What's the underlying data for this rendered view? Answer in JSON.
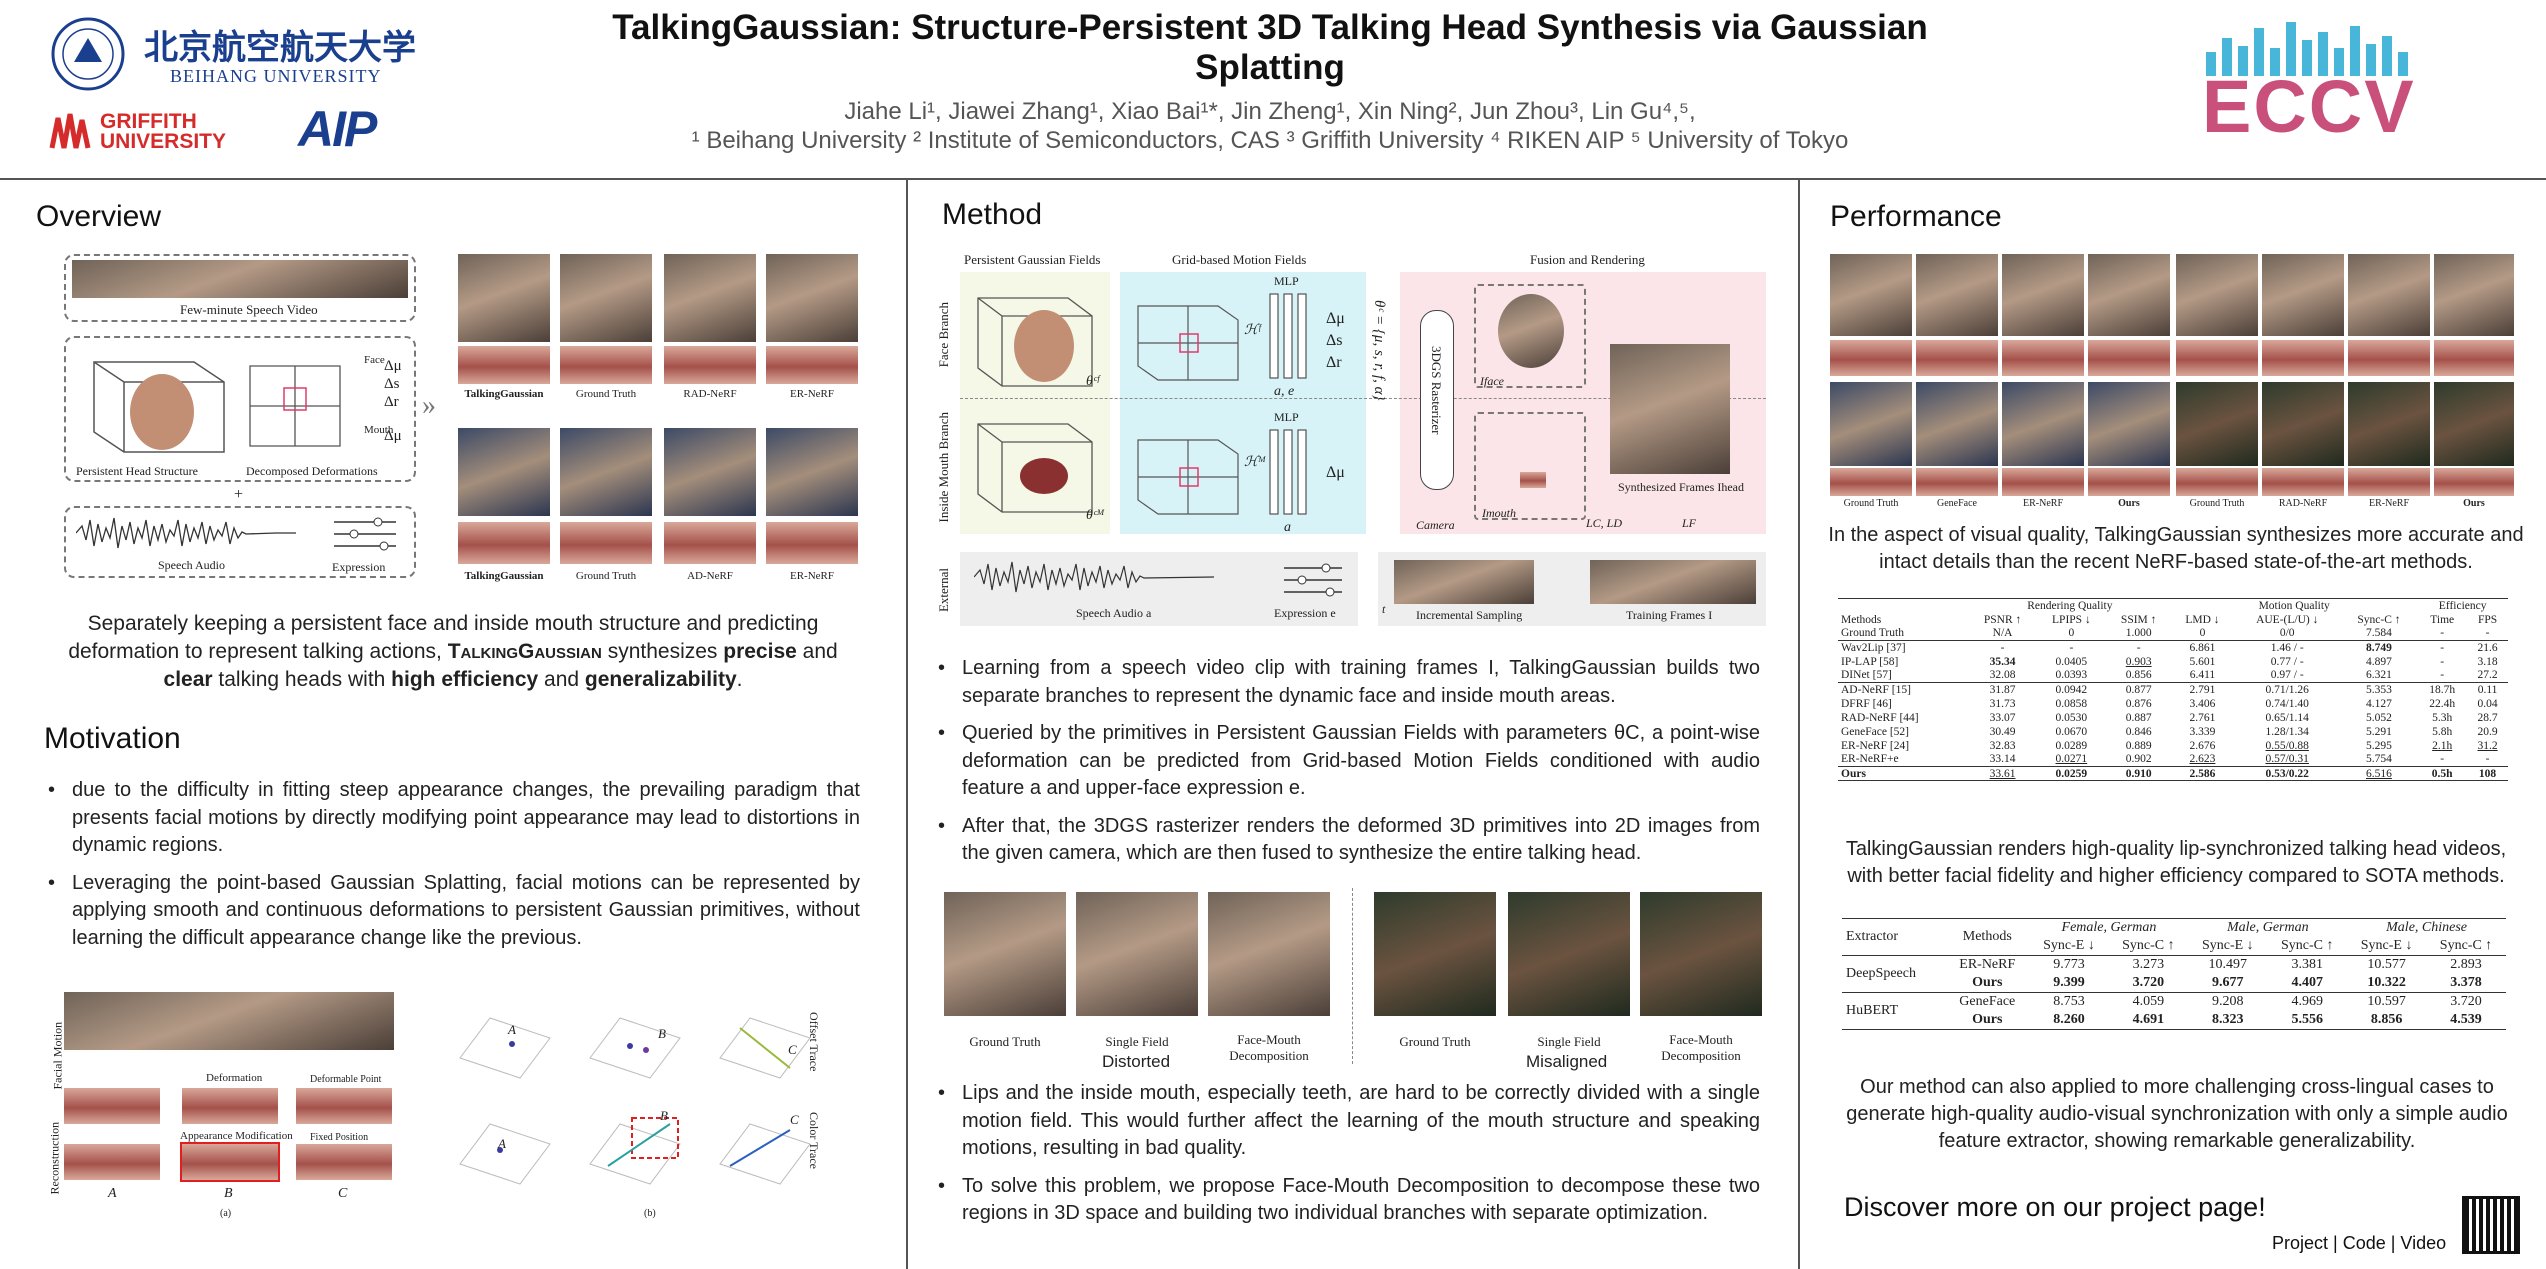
{
  "header": {
    "title": "TalkingGaussian: Structure-Persistent 3D Talking Head Synthesis via Gaussian Splatting",
    "authors": "Jiahe Li¹, Jiawei Zhang¹, Xiao Bai¹*, Jin Zheng¹, Xin Ning², Jun Zhou³, Lin Gu⁴,⁵,",
    "affiliations": "¹ Beihang University  ² Institute of Semiconductors, CAS  ³ Griffith University  ⁴ RIKEN AIP  ⁵ University of Tokyo",
    "logos": {
      "beihang_cn": "北京航空航天大学",
      "beihang_en": "BEIHANG UNIVERSITY",
      "griffith": "GRIFFITH UNIVERSITY",
      "aip": "AIP",
      "eccv": "ECCV"
    }
  },
  "overview": {
    "heading": "Overview",
    "fig": {
      "video": "Few-minute Speech Video",
      "head": "Persistent Head Structure",
      "deform": "Decomposed Deformations",
      "audio": "Speech Audio",
      "expr": "Expression",
      "face": "Face",
      "mouth": "Mouth",
      "delta_mu": "Δμ",
      "delta_s": "Δs",
      "delta_r": "Δr",
      "plus": "+",
      "cmp1": [
        "TalkingGaussian",
        "Ground Truth",
        "RAD-NeRF",
        "ER-NeRF"
      ],
      "cmp2": [
        "TalkingGaussian",
        "Ground Truth",
        "AD-NeRF",
        "ER-NeRF"
      ]
    },
    "text_a": "Separately keeping a persistent face and inside mouth structure and predicting deformation to represent talking actions, ",
    "text_name": "TalkingGaussian",
    "text_b": " synthesizes ",
    "text_precise": "precise",
    "text_c": " and ",
    "text_clear": "clear",
    "text_d": " talking heads with ",
    "text_eff": "high efficiency",
    "text_e": " and ",
    "text_gen": "generalizability",
    "text_f": "."
  },
  "motivation": {
    "heading": "Motivation",
    "bullets": [
      "due to the difficulty in fitting steep appearance changes, the prevailing paradigm that presents facial motions by directly modifying point appearance may lead to distortions in dynamic regions.",
      "Leveraging the point-based Gaussian Splatting, facial motions can be represented by applying smooth and continuous deformations to persistent Gaussian primitives, without learning the difficult appearance change like the previous."
    ],
    "fig": {
      "facial_motion": "Facial Motion",
      "reconstruction": "Reconstruction",
      "deformation": "Deformation",
      "appearance": "Appearance Modification",
      "deformable": "Deformable Point",
      "fixed": "Fixed Position",
      "A": "A",
      "B": "B",
      "C": "C",
      "a": "(a)",
      "b": "(b)",
      "offset": "Offset Trace",
      "color": "Color Trace"
    }
  },
  "method": {
    "heading": "Method",
    "fig": {
      "pgf": "Persistent Gaussian Fields",
      "gmf": "Grid-based Motion Fields",
      "fr": "Fusion and Rendering",
      "face_branch": "Face Branch",
      "mouth_branch": "Inside Mouth Branch",
      "external": "External",
      "mlp": "MLP",
      "ae": "a, e",
      "a": "a",
      "dmu": "Δμ",
      "ds": "Δs",
      "dr": "Δr",
      "theta_f": "θᶜᶠ",
      "theta_m": "θᶜᴹ",
      "hf": "ℋᶠ",
      "hm": "ℋᴹ",
      "params": "θᶜ = {μ, s, r, f, α}",
      "rasterizer": "3DGS Rasterizer",
      "camera": "Camera",
      "iface": "Iface",
      "imouth": "Imouth",
      "synth": "Synthesized Frames Ihead",
      "loss_cd": "LC, LD",
      "loss_f": "LF",
      "speech": "Speech Audio a",
      "expression": "Expression e",
      "incremental": "Incremental Sampling",
      "training": "Training Frames I",
      "t": "t"
    },
    "bullets": [
      "Learning from a speech video clip with training frames I, TalkingGaussian builds two separate branches to represent the dynamic face and inside mouth areas.",
      "Queried by the primitives in Persistent Gaussian Fields with parameters θC, a point-wise deformation can be predicted from Grid-based Motion Fields conditioned with audio feature a and upper-face expression e.",
      "After that, the 3DGS rasterizer renders the deformed 3D primitives into 2D images from the given camera, which are then fused to synthesize the entire talking head."
    ],
    "fm_fig": {
      "caps": [
        "Ground Truth",
        "Single Field",
        "Face-Mouth Decomposition",
        "Ground Truth",
        "Single Field",
        "Face-Mouth Decomposition"
      ],
      "distorted": "Distorted",
      "misaligned": "Misaligned"
    },
    "bullets2": [
      "Lips and the inside mouth, especially teeth, are hard to be correctly divided with a single motion field. This would further affect the learning of the mouth structure and speaking motions, resulting in bad quality.",
      "To solve this problem, we propose Face-Mouth Decomposition to decompose these two regions in 3D space and building two individual branches with separate optimization."
    ]
  },
  "performance": {
    "heading": "Performance",
    "grid_caps": [
      "Ground Truth",
      "GeneFace",
      "ER-NeRF",
      "Ours",
      "Ground Truth",
      "RAD-NeRF",
      "ER-NeRF",
      "Ours"
    ],
    "text1": "In the aspect of visual quality, TalkingGaussian synthesizes more accurate and intact details than the recent NeRF-based state-of-the-art methods.",
    "table1": {
      "groups": [
        "Rendering Quality",
        "Motion Quality",
        "Efficiency"
      ],
      "cols": [
        "Methods",
        "PSNR ↑",
        "LPIPS ↓",
        "SSIM ↑",
        "LMD ↓",
        "AUE-(L/U) ↓",
        "Sync-C ↑",
        "Time",
        "FPS"
      ],
      "gt": [
        "Ground Truth",
        "N/A",
        "0",
        "1.000",
        "0",
        "0/0",
        "7.584",
        "-",
        "-"
      ],
      "rows_a": [
        [
          "Wav2Lip [37]",
          "-",
          "-",
          "-",
          "6.861",
          "1.46 / -",
          "8.749",
          "-",
          "21.6"
        ],
        [
          "IP-LAP [58]",
          "35.34",
          "0.0405",
          "0.903",
          "5.601",
          "0.77 / -",
          "4.897",
          "-",
          "3.18"
        ],
        [
          "DINet [57]",
          "32.08",
          "0.0393",
          "0.856",
          "6.411",
          "0.97 / -",
          "6.321",
          "-",
          "27.2"
        ]
      ],
      "rows_b": [
        [
          "AD-NeRF [15]",
          "31.87",
          "0.0942",
          "0.877",
          "2.791",
          "0.71/1.26",
          "5.353",
          "18.7h",
          "0.11"
        ],
        [
          "DFRF [46]",
          "31.73",
          "0.0858",
          "0.876",
          "3.406",
          "0.74/1.40",
          "4.127",
          "22.4h",
          "0.04"
        ],
        [
          "RAD-NeRF [44]",
          "33.07",
          "0.0530",
          "0.887",
          "2.761",
          "0.65/1.14",
          "5.052",
          "5.3h",
          "28.7"
        ],
        [
          "GeneFace [52]",
          "30.49",
          "0.0670",
          "0.846",
          "3.339",
          "1.28/1.34",
          "5.291",
          "5.8h",
          "20.9"
        ],
        [
          "ER-NeRF [24]",
          "32.83",
          "0.0289",
          "0.889",
          "2.676",
          "0.55/0.88",
          "5.295",
          "2.1h",
          "31.2"
        ],
        [
          "ER-NeRF+e",
          "33.14",
          "0.0271",
          "0.902",
          "2.623",
          "0.57/0.31",
          "5.754",
          "-",
          "-"
        ]
      ],
      "ours": [
        "Ours",
        "33.61",
        "0.0259",
        "0.910",
        "2.586",
        "0.53/0.22",
        "6.516",
        "0.5h",
        "108"
      ]
    },
    "text2": "TalkingGaussian renders high-quality lip-synchronized talking head videos, with better facial fidelity and higher efficiency compared to SOTA methods.",
    "table2": {
      "head": [
        "Extractor",
        "Methods",
        "Female, German",
        "Male, German",
        "Male, Chinese"
      ],
      "sub": [
        "Sync-E ↓",
        "Sync-C ↑",
        "Sync-E ↓",
        "Sync-C ↑",
        "Sync-E ↓",
        "Sync-C ↑"
      ],
      "rows": [
        [
          "DeepSpeech",
          "ER-NeRF",
          "9.773",
          "3.273",
          "10.497",
          "3.381",
          "10.577",
          "2.893"
        ],
        [
          "",
          "Ours",
          "9.399",
          "3.720",
          "9.677",
          "4.407",
          "10.322",
          "3.378"
        ],
        [
          "HuBERT",
          "GeneFace",
          "8.753",
          "4.059",
          "9.208",
          "4.969",
          "10.597",
          "3.720"
        ],
        [
          "",
          "Ours",
          "8.260",
          "4.691",
          "8.323",
          "5.556",
          "8.856",
          "4.539"
        ]
      ]
    },
    "text3": "Our method can also applied to more challenging cross-lingual cases to generate high-quality audio-visual synchronization with only a simple audio feature extractor, showing remarkable generalizability.",
    "discover": "Discover more on our project page!",
    "links": "Project | Code | Video"
  },
  "colors": {
    "motion_field_bg": "#d8f3f7",
    "fusion_bg": "#fbe5e8",
    "pgf_bg": "#f5f8e6",
    "external_bg": "#eeeeee",
    "ink": "#222222"
  }
}
